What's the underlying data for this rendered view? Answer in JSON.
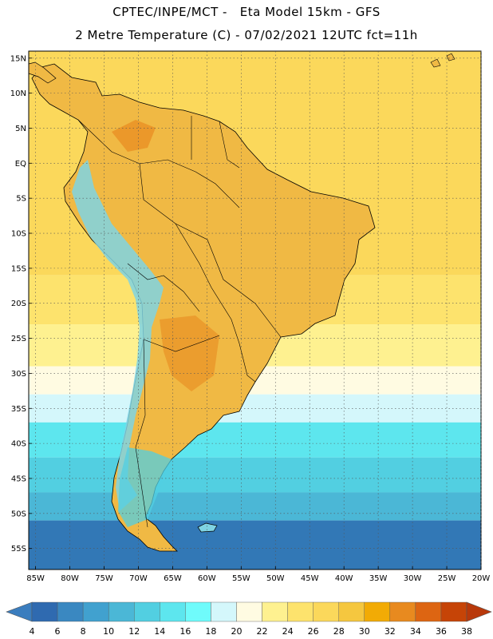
{
  "header": {
    "line1": "CPTEC/INPE/MCT -   Eta Model 15km - GFS",
    "line2": "2 Metre Temperature (C) - 07/02/2021 12UTC fct=11h"
  },
  "map": {
    "lon_range": [
      -86,
      -20
    ],
    "lat_range": [
      -58,
      16
    ],
    "lat_ticks": [
      {
        "value": 15,
        "label": "15N"
      },
      {
        "value": 10,
        "label": "10N"
      },
      {
        "value": 5,
        "label": "5N"
      },
      {
        "value": 0,
        "label": "EQ"
      },
      {
        "value": -5,
        "label": "5S"
      },
      {
        "value": -10,
        "label": "10S"
      },
      {
        "value": -15,
        "label": "15S"
      },
      {
        "value": -20,
        "label": "20S"
      },
      {
        "value": -25,
        "label": "25S"
      },
      {
        "value": -30,
        "label": "30S"
      },
      {
        "value": -35,
        "label": "35S"
      },
      {
        "value": -40,
        "label": "40S"
      },
      {
        "value": -45,
        "label": "45S"
      },
      {
        "value": -50,
        "label": "50S"
      },
      {
        "value": -55,
        "label": "55S"
      }
    ],
    "lon_ticks": [
      {
        "value": -85,
        "label": "85W"
      },
      {
        "value": -80,
        "label": "80W"
      },
      {
        "value": -75,
        "label": "75W"
      },
      {
        "value": -70,
        "label": "70W"
      },
      {
        "value": -65,
        "label": "65W"
      },
      {
        "value": -60,
        "label": "60W"
      },
      {
        "value": -55,
        "label": "55W"
      },
      {
        "value": -50,
        "label": "50W"
      },
      {
        "value": -45,
        "label": "45W"
      },
      {
        "value": -40,
        "label": "40W"
      },
      {
        "value": -35,
        "label": "35W"
      },
      {
        "value": -30,
        "label": "30W"
      },
      {
        "value": -25,
        "label": "25W"
      },
      {
        "value": -20,
        "label": "20W"
      }
    ],
    "grid": true,
    "ocean_bands": [
      {
        "lat_top": 16,
        "lat_bottom": -16,
        "temp_class": "26-28",
        "color": "#fbd85b"
      },
      {
        "lat_top": -16,
        "lat_bottom": -23,
        "temp_class": "24-26",
        "color": "#fde36d"
      },
      {
        "lat_top": -23,
        "lat_bottom": -29,
        "temp_class": "22-24",
        "color": "#fef190"
      },
      {
        "lat_top": -29,
        "lat_bottom": -33,
        "temp_class": "20-22",
        "color": "#fffbe2"
      },
      {
        "lat_top": -33,
        "lat_bottom": -37,
        "temp_class": "18-20",
        "color": "#d4f7fb"
      },
      {
        "lat_top": -37,
        "lat_bottom": -42,
        "temp_class": "14-16",
        "color": "#5de6ee"
      },
      {
        "lat_top": -42,
        "lat_bottom": -47,
        "temp_class": "12-14",
        "color": "#52cfe1"
      },
      {
        "lat_top": -47,
        "lat_bottom": -51,
        "temp_class": "10-12",
        "color": "#4bb7d6"
      },
      {
        "lat_top": -51,
        "lat_bottom": -58,
        "temp_class": "6-10",
        "color": "#3278b6"
      }
    ],
    "land_color": "#f0b944"
  },
  "colorbar": {
    "labels": [
      "4",
      "6",
      "8",
      "10",
      "12",
      "14",
      "16",
      "18",
      "20",
      "22",
      "24",
      "26",
      "28",
      "30",
      "32",
      "34",
      "36",
      "38"
    ],
    "colors": [
      "#3a7dbe",
      "#2f6ab0",
      "#3a88c1",
      "#41a1cf",
      "#4bb7d6",
      "#52cfe1",
      "#5de6ee",
      "#6ffbfb",
      "#d4f7fb",
      "#fffbe2",
      "#fef190",
      "#fde36d",
      "#fbd85b",
      "#f5c73f",
      "#f2ab05",
      "#e88a1f",
      "#dd6512",
      "#c64407",
      "#b8380a"
    ]
  }
}
